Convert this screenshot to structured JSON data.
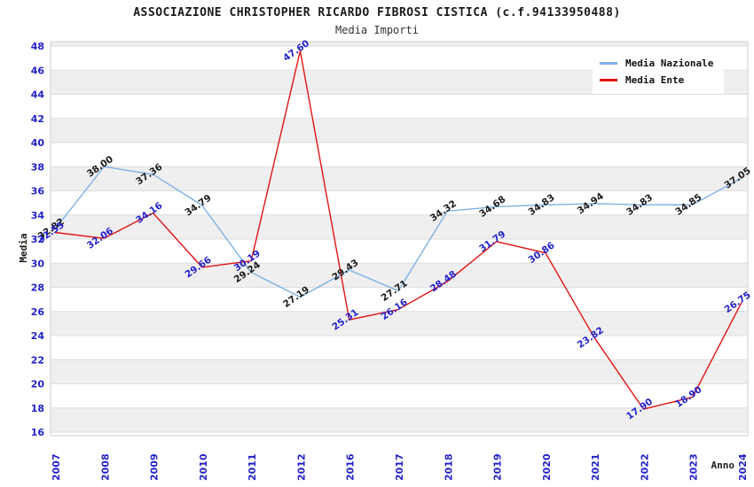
{
  "title": "ASSOCIAZIONE CHRISTOPHER RICARDO FIBROSI CISTICA (c.f.94133950488)",
  "subtitle": "Media Importi",
  "chart_data": {
    "type": "line",
    "title": "ASSOCIAZIONE CHRISTOPHER RICARDO FIBROSI CISTICA (c.f.94133950488)",
    "subtitle": "Media Importi",
    "categories": [
      "2007",
      "2008",
      "2009",
      "2010",
      "2011",
      "2012",
      "2016",
      "2017",
      "2018",
      "2019",
      "2020",
      "2021",
      "2022",
      "2023",
      "2024"
    ],
    "series": [
      {
        "name": "Media Nazionale",
        "color": "#7db1e3",
        "label_color": "#1a1a1a",
        "values": [
          32.82,
          38.0,
          37.36,
          34.79,
          29.24,
          27.19,
          29.43,
          27.71,
          34.32,
          34.68,
          34.83,
          34.94,
          34.83,
          34.85,
          37.05
        ]
      },
      {
        "name": "Media Ente",
        "color": "#e01414",
        "label_color": "#2222cc",
        "values": [
          32.55,
          32.06,
          34.16,
          29.66,
          30.19,
          47.6,
          25.31,
          26.16,
          28.48,
          31.79,
          30.86,
          23.82,
          17.9,
          18.9,
          26.75
        ]
      }
    ],
    "xlabel": "Anno",
    "ylabel": "Media",
    "ylim": [
      16,
      48
    ],
    "yticks": [
      16,
      18,
      20,
      22,
      24,
      26,
      28,
      30,
      32,
      34,
      36,
      38,
      40,
      42,
      44,
      46,
      48
    ],
    "grid": "horizontal-bands",
    "legend_position": "top-right",
    "tick_color": "#2222cc",
    "axis_title_color": "#1a1a1a",
    "band_color": "#efefef",
    "grid_line_color": "#dedede",
    "border_color": "#cfcfcf",
    "data_label_rotation_deg": -35
  }
}
